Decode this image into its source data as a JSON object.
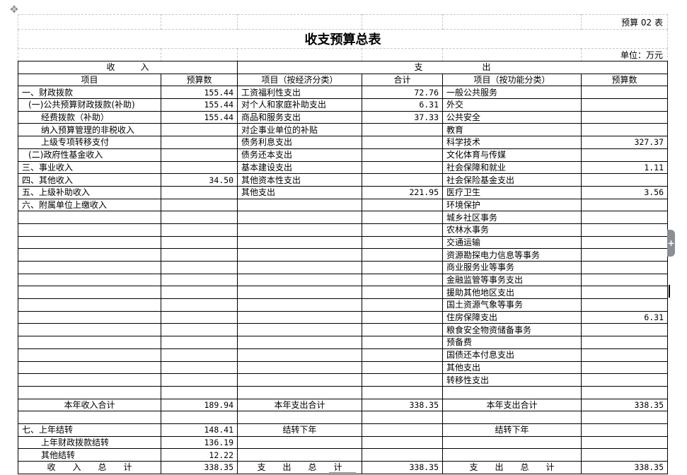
{
  "doc": {
    "form_no": "预算 02 表",
    "title": "收支预算总表",
    "unit": "单位：万元",
    "side_tab": "+"
  },
  "table": {
    "group_headers": {
      "income": "收　　　入",
      "expense": "支　　　　　　　出"
    },
    "column_headers": [
      "项目",
      "预算数",
      "项目（按经济分类）",
      "合计",
      "项目（按功能分类）",
      "预算数"
    ],
    "rows": [
      [
        "一、财政拨款",
        "155.44",
        "工资福利性支出",
        "72.76",
        "一般公共服务",
        ""
      ],
      [
        "(一)公共预算财政拨款(补助)",
        "155.44",
        "对个人和家庭补助支出",
        "6.31",
        "外交",
        ""
      ],
      [
        "经费拨款（补助）",
        "155.44",
        "商品和服务支出",
        "37.33",
        "公共安全",
        ""
      ],
      [
        "纳入预算管理的非税收入",
        "",
        "对企事业单位的补贴",
        "",
        "教育",
        ""
      ],
      [
        "上级专项转移支付",
        "",
        "债务利息支出",
        "",
        "科学技术",
        "327.37"
      ],
      [
        "(二)政府性基金收入",
        "",
        "债务还本支出",
        "",
        "文化体育与传媒",
        ""
      ],
      [
        "三、事业收入",
        "",
        "基本建设支出",
        "",
        "社会保障和就业",
        "1.11"
      ],
      [
        "四、其他收入",
        "34.50",
        "其他资本性支出",
        "",
        "社会保险基金支出",
        ""
      ],
      [
        "五、上级补助收入",
        "",
        "其他支出",
        "221.95",
        "医疗卫生",
        "3.56"
      ],
      [
        "六、附属单位上缴收入",
        "",
        "",
        "",
        "环境保护",
        ""
      ],
      [
        "",
        "",
        "",
        "",
        "城乡社区事务",
        ""
      ],
      [
        "",
        "",
        "",
        "",
        "农林水事务",
        ""
      ],
      [
        "",
        "",
        "",
        "",
        "交通运输",
        ""
      ],
      [
        "",
        "",
        "",
        "",
        "资源勘探电力信息等事务",
        ""
      ],
      [
        "",
        "",
        "",
        "",
        "商业服务业等事务",
        ""
      ],
      [
        "",
        "",
        "",
        "",
        "金融监管等事务支出",
        ""
      ],
      [
        "",
        "",
        "",
        "",
        "援助其他地区支出",
        ""
      ],
      [
        "",
        "",
        "",
        "",
        "国土资源气象等事务",
        ""
      ],
      [
        "",
        "",
        "",
        "",
        "住房保障支出",
        "6.31"
      ],
      [
        "",
        "",
        "",
        "",
        "粮食安全物资储备事务",
        ""
      ],
      [
        "",
        "",
        "",
        "",
        "预备费",
        ""
      ],
      [
        "",
        "",
        "",
        "",
        "国债还本付息支出",
        ""
      ],
      [
        "",
        "",
        "",
        "",
        "其他支出",
        ""
      ],
      [
        "",
        "",
        "",
        "",
        "转移性支出",
        ""
      ],
      [
        "",
        "",
        "",
        "",
        "",
        ""
      ],
      [
        "本年收入合计",
        "189.94",
        "本年支出合计",
        "338.35",
        "本年支出合计",
        "338.35"
      ],
      [
        "",
        "",
        "",
        "",
        "",
        ""
      ],
      [
        "七、上年结转",
        "148.41",
        "结转下年",
        "",
        "结转下年",
        ""
      ],
      [
        "上年财政拨款结转",
        "136.19",
        "",
        "",
        "",
        ""
      ],
      [
        "其他结转",
        "12.22",
        "",
        "",
        "",
        ""
      ],
      [
        "收　　入　　总　　计",
        "338.35",
        "支　　出　　总　　计",
        "338.35",
        "支　　出　　总　　计",
        "338.35"
      ]
    ]
  }
}
